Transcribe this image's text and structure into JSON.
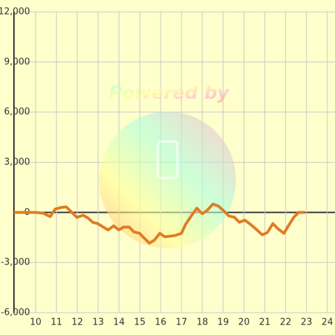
{
  "chart_data": {
    "type": "line",
    "watermark": "Powered by",
    "x": [
      8.96,
      10,
      10.37,
      10.7,
      10.94,
      11.24,
      11.47,
      11.74,
      11.98,
      12.28,
      12.51,
      12.75,
      12.98,
      13.25,
      13.48,
      13.75,
      13.99,
      14.22,
      14.49,
      14.72,
      14.99,
      15.22,
      15.46,
      15.69,
      15.96,
      16.2,
      16.46,
      16.7,
      17,
      17.2,
      17.47,
      17.74,
      18,
      18.24,
      18.51,
      18.77,
      19,
      19.27,
      19.54,
      19.78,
      20.04,
      20.31,
      20.58,
      20.88,
      21.12,
      21.39,
      21.65,
      21.92,
      22.16,
      22.39,
      22.63,
      22.93
    ],
    "series": [
      {
        "color": "#e07b24",
        "values": [
          0,
          0,
          -50,
          -250,
          200,
          300,
          330,
          0,
          -300,
          -170,
          -330,
          -600,
          -670,
          -880,
          -1050,
          -800,
          -1050,
          -880,
          -880,
          -1170,
          -1250,
          -1550,
          -1840,
          -1670,
          -1250,
          -1460,
          -1420,
          -1380,
          -1250,
          -710,
          -210,
          250,
          -80,
          130,
          500,
          380,
          130,
          -210,
          -290,
          -590,
          -460,
          -710,
          -1000,
          -1340,
          -1210,
          -670,
          -1000,
          -1250,
          -750,
          -290,
          0,
          0
        ]
      }
    ],
    "xlim": [
      8.96,
      24.37
    ],
    "ylim": [
      -6000,
      12000
    ],
    "xticks": [
      10,
      11,
      12,
      13,
      14,
      15,
      16,
      17,
      18,
      19,
      20,
      21,
      22,
      23,
      24
    ],
    "yticks": [
      {
        "value": -6000,
        "label": "-6,000"
      },
      {
        "value": -3000,
        "label": "-3,000"
      },
      0,
      {
        "value": 3000,
        "label": "3,000"
      },
      {
        "value": 6000,
        "label": "6,000"
      },
      {
        "value": 9000,
        "label": "9,000"
      },
      {
        "value": 12000,
        "label": "12,000"
      }
    ],
    "grid": true
  }
}
